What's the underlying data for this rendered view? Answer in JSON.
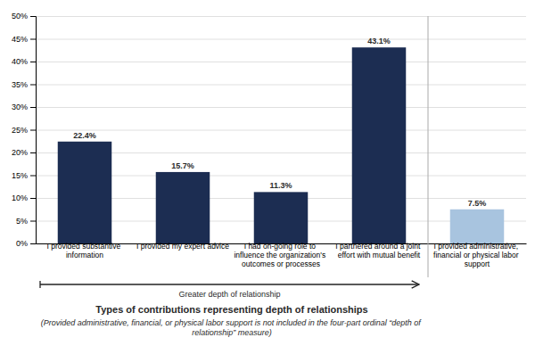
{
  "chart_data": {
    "type": "bar",
    "categories": [
      "I provided substantive\ninformation",
      "I provided my expert advice",
      "I had on-going role to\ninfluence the organization's\noutcomes or processes",
      "I partnered around a joint\neffort with mutual benefit",
      "I provided administrative,\nfinancial or physical labor\nsupport"
    ],
    "values": [
      22.4,
      15.7,
      11.3,
      43.1,
      7.5
    ],
    "value_labels": [
      "22.4%",
      "15.7%",
      "11.3%",
      "43.1%",
      "7.5%"
    ],
    "colors": [
      "#1c2d52",
      "#1c2d52",
      "#1c2d52",
      "#1c2d52",
      "#a8c4df"
    ],
    "ylim": [
      0,
      50
    ],
    "yticks": [
      {
        "value": 0,
        "label": "0%"
      },
      {
        "value": 5,
        "label": "5%"
      },
      {
        "value": 10,
        "label": "10%"
      },
      {
        "value": 15,
        "label": "15%"
      },
      {
        "value": 20,
        "label": "20%"
      },
      {
        "value": 25,
        "label": "25%"
      },
      {
        "value": 30,
        "label": "30%"
      },
      {
        "value": 35,
        "label": "35%"
      },
      {
        "value": 40,
        "label": "40%"
      },
      {
        "value": 45,
        "label": "45%"
      },
      {
        "value": 50,
        "label": "50%"
      }
    ],
    "grid": true,
    "data_labels": true,
    "xlabel": "Types of contributions representing depth of relationships",
    "annotations": [
      "(Provided administrative, financial, or physical labor support is not included in the four-part ordinal “depth of relationship” measure)",
      "Greater depth of relationship"
    ]
  }
}
